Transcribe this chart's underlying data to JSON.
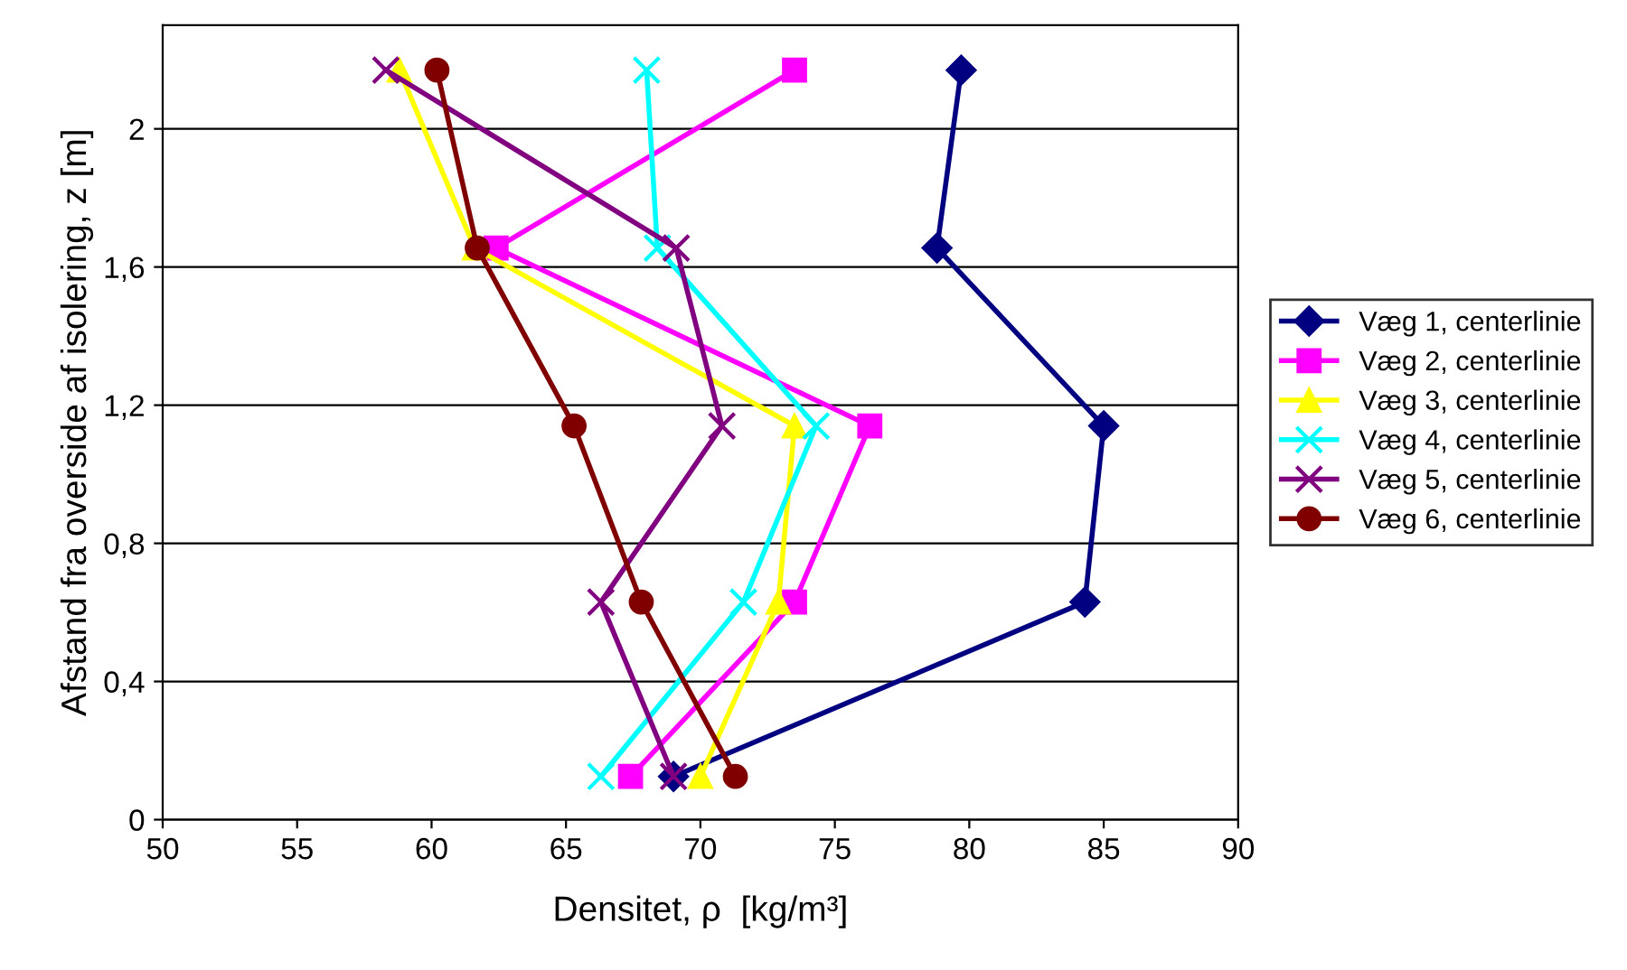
{
  "chart_data": {
    "type": "line",
    "xlabel": "Densitet, ρ  [kg/m³]",
    "ylabel": "Afstand fra overside af isolering, z [m]",
    "xlim": [
      50,
      90
    ],
    "xticks": [
      50,
      55,
      60,
      65,
      70,
      75,
      80,
      85,
      90
    ],
    "ylim": [
      0,
      2.3
    ],
    "yticks": [
      0,
      {
        "value": 0.4,
        "label": "0,4"
      },
      {
        "value": 0.8,
        "label": "0,8"
      },
      {
        "value": 1.2,
        "label": "1,2"
      },
      {
        "value": 1.6,
        "label": "1,6"
      },
      2
    ],
    "grid": "y",
    "legend": "right",
    "line_style": "solid",
    "series": [
      {
        "name": "Væg 1, centerlinie",
        "color": "#000080",
        "marker": "diamond",
        "x": [
          79.7,
          78.8,
          85.0,
          84.3,
          69.0
        ],
        "values": [
          2.17,
          1.655,
          1.14,
          0.63,
          0.125
        ]
      },
      {
        "name": "Væg 2, centerlinie",
        "color": "#ff00ff",
        "marker": "square",
        "x": [
          73.5,
          62.4,
          76.3,
          73.5,
          67.4
        ],
        "values": [
          2.17,
          1.655,
          1.14,
          0.63,
          0.125
        ]
      },
      {
        "name": "Væg 3, centerlinie",
        "color": "#ffff00",
        "marker": "triangle",
        "x": [
          58.8,
          61.6,
          73.5,
          72.9,
          70.0
        ],
        "values": [
          2.17,
          1.655,
          1.14,
          0.63,
          0.125
        ]
      },
      {
        "name": "Væg 4, centerlinie",
        "color": "#00ffff",
        "marker": "cross",
        "x": [
          68.0,
          68.4,
          74.3,
          71.6,
          66.3
        ],
        "values": [
          2.17,
          1.655,
          1.14,
          0.63,
          0.125
        ]
      },
      {
        "name": "Væg 5, centerlinie",
        "color": "#800080",
        "marker": "cross",
        "x": [
          58.3,
          69.1,
          70.8,
          66.3,
          69.0
        ],
        "values": [
          2.17,
          1.655,
          1.14,
          0.63,
          0.125
        ]
      },
      {
        "name": "Væg 6, centerlinie",
        "color": "#800000",
        "marker": "circle",
        "x": [
          60.2,
          61.7,
          65.3,
          67.8,
          71.3
        ],
        "values": [
          2.17,
          1.655,
          1.14,
          0.63,
          0.125
        ]
      }
    ]
  }
}
